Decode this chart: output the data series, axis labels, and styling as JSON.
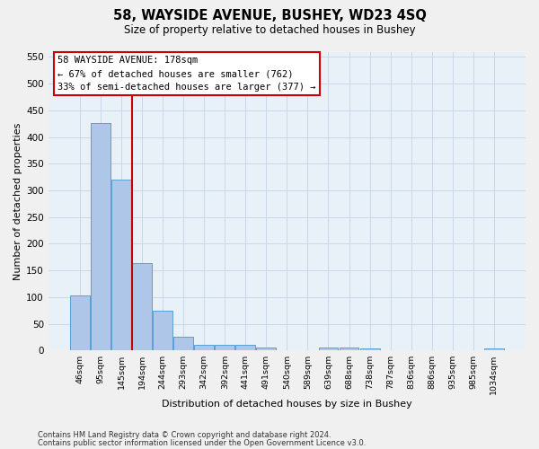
{
  "title_line1": "58, WAYSIDE AVENUE, BUSHEY, WD23 4SQ",
  "title_line2": "Size of property relative to detached houses in Bushey",
  "xlabel": "Distribution of detached houses by size in Bushey",
  "ylabel": "Number of detached properties",
  "bar_labels": [
    "46sqm",
    "95sqm",
    "145sqm",
    "194sqm",
    "244sqm",
    "293sqm",
    "342sqm",
    "392sqm",
    "441sqm",
    "491sqm",
    "540sqm",
    "589sqm",
    "639sqm",
    "688sqm",
    "738sqm",
    "787sqm",
    "836sqm",
    "886sqm",
    "935sqm",
    "985sqm",
    "1034sqm"
  ],
  "bar_values": [
    103,
    427,
    320,
    163,
    75,
    25,
    11,
    11,
    10,
    5,
    0,
    0,
    5,
    5,
    4,
    0,
    0,
    0,
    0,
    0,
    4
  ],
  "bar_color": "#aec6e8",
  "bar_edge_color": "#5a9fd4",
  "property_line_x": 2.5,
  "annotation_title": "58 WAYSIDE AVENUE: 178sqm",
  "annotation_line2": "← 67% of detached houses are smaller (762)",
  "annotation_line3": "33% of semi-detached houses are larger (377) →",
  "annotation_box_facecolor": "#ffffff",
  "annotation_box_edgecolor": "#cc0000",
  "vline_color": "#cc0000",
  "ylim": [
    0,
    560
  ],
  "yticks": [
    0,
    50,
    100,
    150,
    200,
    250,
    300,
    350,
    400,
    450,
    500,
    550
  ],
  "grid_color": "#c8d8ea",
  "plot_bg_color": "#e8f0f8",
  "fig_bg_color": "#f0f0f0",
  "footer_line1": "Contains HM Land Registry data © Crown copyright and database right 2024.",
  "footer_line2": "Contains public sector information licensed under the Open Government Licence v3.0."
}
